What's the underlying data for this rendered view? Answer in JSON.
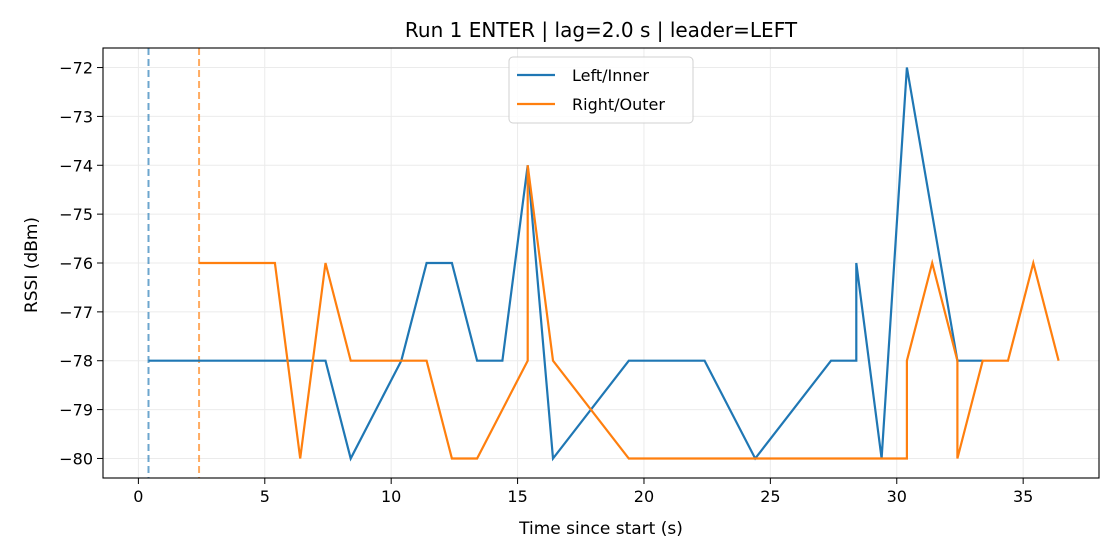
{
  "chart_data": {
    "type": "line",
    "title": "Run 1 ENTER | lag=2.0 s | leader=LEFT",
    "xlabel": "Time since start (s)",
    "ylabel": "RSSI (dBm)",
    "xlim": [
      -1.4,
      38.0
    ],
    "ylim": [
      -80.4,
      -71.6
    ],
    "xticks": [
      0,
      5,
      10,
      15,
      20,
      25,
      30,
      35
    ],
    "xtick_labels": [
      "0",
      "5",
      "10",
      "15",
      "20",
      "25",
      "30",
      "35"
    ],
    "yticks": [
      -80,
      -79,
      -78,
      -77,
      -76,
      -75,
      -74,
      -73,
      -72
    ],
    "ytick_labels": [
      "−80",
      "−79",
      "−78",
      "−77",
      "−76",
      "−75",
      "−74",
      "−73",
      "−72"
    ],
    "grid": true,
    "legend_position": "top-center",
    "vlines": [
      {
        "x": 0.4,
        "color": "#1f77b4",
        "style": "dashed"
      },
      {
        "x": 2.4,
        "color": "#ff7f0e",
        "style": "dashed"
      }
    ],
    "series": [
      {
        "name": "Left/Inner",
        "color": "#1f77b4",
        "x": [
          0.4,
          7.4,
          8.4,
          10.4,
          11.4,
          12.4,
          13.4,
          14.4,
          15.4,
          16.4,
          19.4,
          22.4,
          24.4,
          27.4,
          28.4,
          28.4,
          29.4,
          30.4,
          32.4,
          33.4
        ],
        "y": [
          -78,
          -78,
          -80,
          -78,
          -76,
          -76,
          -78,
          -78,
          -74,
          -80,
          -78,
          -78,
          -80,
          -78,
          -78,
          -76,
          -80,
          -72,
          -78,
          -78
        ]
      },
      {
        "name": "Right/Outer",
        "color": "#ff7f0e",
        "x": [
          2.4,
          5.4,
          6.4,
          7.4,
          8.4,
          11.4,
          12.4,
          13.4,
          15.4,
          15.4,
          16.4,
          19.4,
          30.4,
          30.4,
          31.4,
          32.4,
          32.4,
          33.4,
          33.4,
          34.4,
          35.4,
          36.4
        ],
        "y": [
          -76,
          -76,
          -80,
          -76,
          -78,
          -78,
          -80,
          -80,
          -78,
          -74,
          -78,
          -80,
          -80,
          -78,
          -76,
          -78,
          -80,
          -78,
          -78,
          -78,
          -76,
          -78
        ]
      }
    ]
  }
}
